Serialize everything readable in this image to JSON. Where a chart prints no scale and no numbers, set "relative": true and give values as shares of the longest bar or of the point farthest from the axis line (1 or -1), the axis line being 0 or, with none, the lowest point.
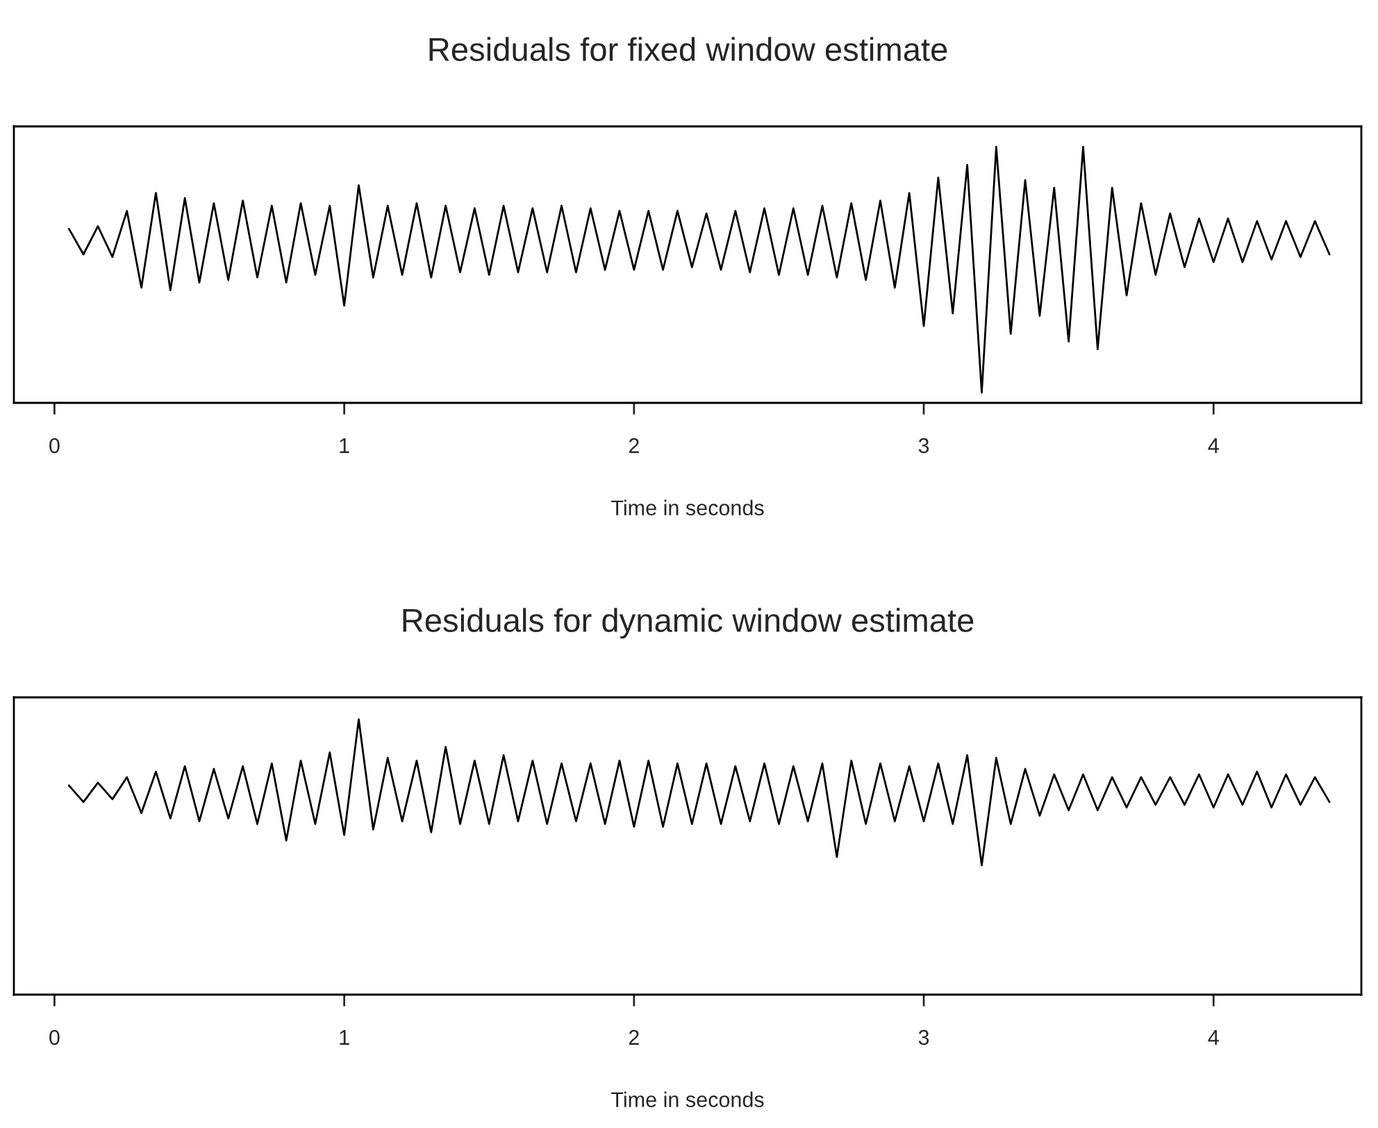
{
  "chart_data": [
    {
      "type": "line",
      "title": "Residuals for fixed window estimate",
      "xlabel": "Time in seconds",
      "relative": true,
      "xlim": [
        -0.14,
        4.51
      ],
      "xticks": [
        0,
        1,
        2,
        3,
        4
      ],
      "tick_labels": "x",
      "x": [
        0.05,
        0.1,
        0.15,
        0.2,
        0.25,
        0.3,
        0.35,
        0.4,
        0.45,
        0.5,
        0.55,
        0.6,
        0.65,
        0.7,
        0.75,
        0.8,
        0.85,
        0.9,
        0.95,
        1.0,
        1.05,
        1.1,
        1.15,
        1.2,
        1.25,
        1.3,
        1.35,
        1.4,
        1.45,
        1.5,
        1.55,
        1.6,
        1.65,
        1.7,
        1.75,
        1.8,
        1.85,
        1.9,
        1.95,
        2.0,
        2.05,
        2.1,
        2.15,
        2.2,
        2.25,
        2.3,
        2.35,
        2.4,
        2.45,
        2.5,
        2.55,
        2.6,
        2.65,
        2.7,
        2.75,
        2.8,
        2.85,
        2.9,
        2.95,
        3.0,
        3.05,
        3.1,
        3.15,
        3.2,
        3.25,
        3.3,
        3.35,
        3.4,
        3.45,
        3.5,
        3.55,
        3.6,
        3.65,
        3.7,
        3.75,
        3.8,
        3.85,
        3.9,
        3.95,
        4.0,
        4.05,
        4.1,
        4.15,
        4.2,
        4.25,
        4.3,
        4.35,
        4.4
      ],
      "series": [
        {
          "color": "#000000",
          "values": [
            0.68,
            0.58,
            0.69,
            0.57,
            0.75,
            0.45,
            0.82,
            0.44,
            0.8,
            0.47,
            0.78,
            0.48,
            0.79,
            0.49,
            0.77,
            0.47,
            0.78,
            0.5,
            0.77,
            0.38,
            0.85,
            0.49,
            0.77,
            0.5,
            0.78,
            0.49,
            0.77,
            0.51,
            0.76,
            0.5,
            0.77,
            0.51,
            0.76,
            0.51,
            0.77,
            0.51,
            0.76,
            0.52,
            0.75,
            0.52,
            0.75,
            0.52,
            0.75,
            0.53,
            0.74,
            0.52,
            0.75,
            0.51,
            0.76,
            0.5,
            0.76,
            0.5,
            0.77,
            0.49,
            0.78,
            0.48,
            0.79,
            0.45,
            0.82,
            0.3,
            0.88,
            0.35,
            0.93,
            0.04,
            1.0,
            0.27,
            0.87,
            0.34,
            0.84,
            0.24,
            1.0,
            0.21,
            0.84,
            0.42,
            0.78,
            0.5,
            0.74,
            0.53,
            0.72,
            0.55,
            0.72,
            0.55,
            0.71,
            0.56,
            0.71,
            0.57,
            0.71,
            0.58
          ]
        }
      ]
    },
    {
      "type": "line",
      "title": "Residuals for dynamic window estimate",
      "xlabel": "Time in seconds",
      "relative": true,
      "xlim": [
        -0.14,
        4.51
      ],
      "xticks": [
        0,
        1,
        2,
        3,
        4
      ],
      "tick_labels": "x",
      "x": [
        0.05,
        0.1,
        0.15,
        0.2,
        0.25,
        0.3,
        0.35,
        0.4,
        0.45,
        0.5,
        0.55,
        0.6,
        0.65,
        0.7,
        0.75,
        0.8,
        0.85,
        0.9,
        0.95,
        1.0,
        1.05,
        1.1,
        1.15,
        1.2,
        1.25,
        1.3,
        1.35,
        1.4,
        1.45,
        1.5,
        1.55,
        1.6,
        1.65,
        1.7,
        1.75,
        1.8,
        1.85,
        1.9,
        1.95,
        2.0,
        2.05,
        2.1,
        2.15,
        2.2,
        2.25,
        2.3,
        2.35,
        2.4,
        2.45,
        2.5,
        2.55,
        2.6,
        2.65,
        2.7,
        2.75,
        2.8,
        2.85,
        2.9,
        2.95,
        3.0,
        3.05,
        3.1,
        3.15,
        3.2,
        3.25,
        3.3,
        3.35,
        3.4,
        3.45,
        3.5,
        3.55,
        3.6,
        3.65,
        3.7,
        3.75,
        3.8,
        3.85,
        3.9,
        3.95,
        4.0,
        4.05,
        4.1,
        4.15,
        4.2,
        4.25,
        4.3,
        4.35,
        4.4
      ],
      "series": [
        {
          "color": "#000000",
          "values": [
            0.76,
            0.7,
            0.77,
            0.71,
            0.79,
            0.66,
            0.81,
            0.64,
            0.83,
            0.63,
            0.82,
            0.64,
            0.83,
            0.62,
            0.84,
            0.56,
            0.85,
            0.62,
            0.88,
            0.58,
            1.0,
            0.6,
            0.86,
            0.63,
            0.85,
            0.59,
            0.9,
            0.62,
            0.85,
            0.62,
            0.87,
            0.63,
            0.85,
            0.62,
            0.84,
            0.63,
            0.84,
            0.62,
            0.85,
            0.61,
            0.85,
            0.61,
            0.84,
            0.62,
            0.84,
            0.62,
            0.83,
            0.63,
            0.84,
            0.62,
            0.83,
            0.63,
            0.84,
            0.5,
            0.85,
            0.62,
            0.84,
            0.63,
            0.83,
            0.63,
            0.84,
            0.62,
            0.87,
            0.47,
            0.86,
            0.62,
            0.82,
            0.65,
            0.8,
            0.67,
            0.8,
            0.67,
            0.79,
            0.68,
            0.79,
            0.69,
            0.79,
            0.69,
            0.8,
            0.68,
            0.8,
            0.69,
            0.81,
            0.68,
            0.8,
            0.69,
            0.79,
            0.7
          ]
        }
      ]
    }
  ]
}
